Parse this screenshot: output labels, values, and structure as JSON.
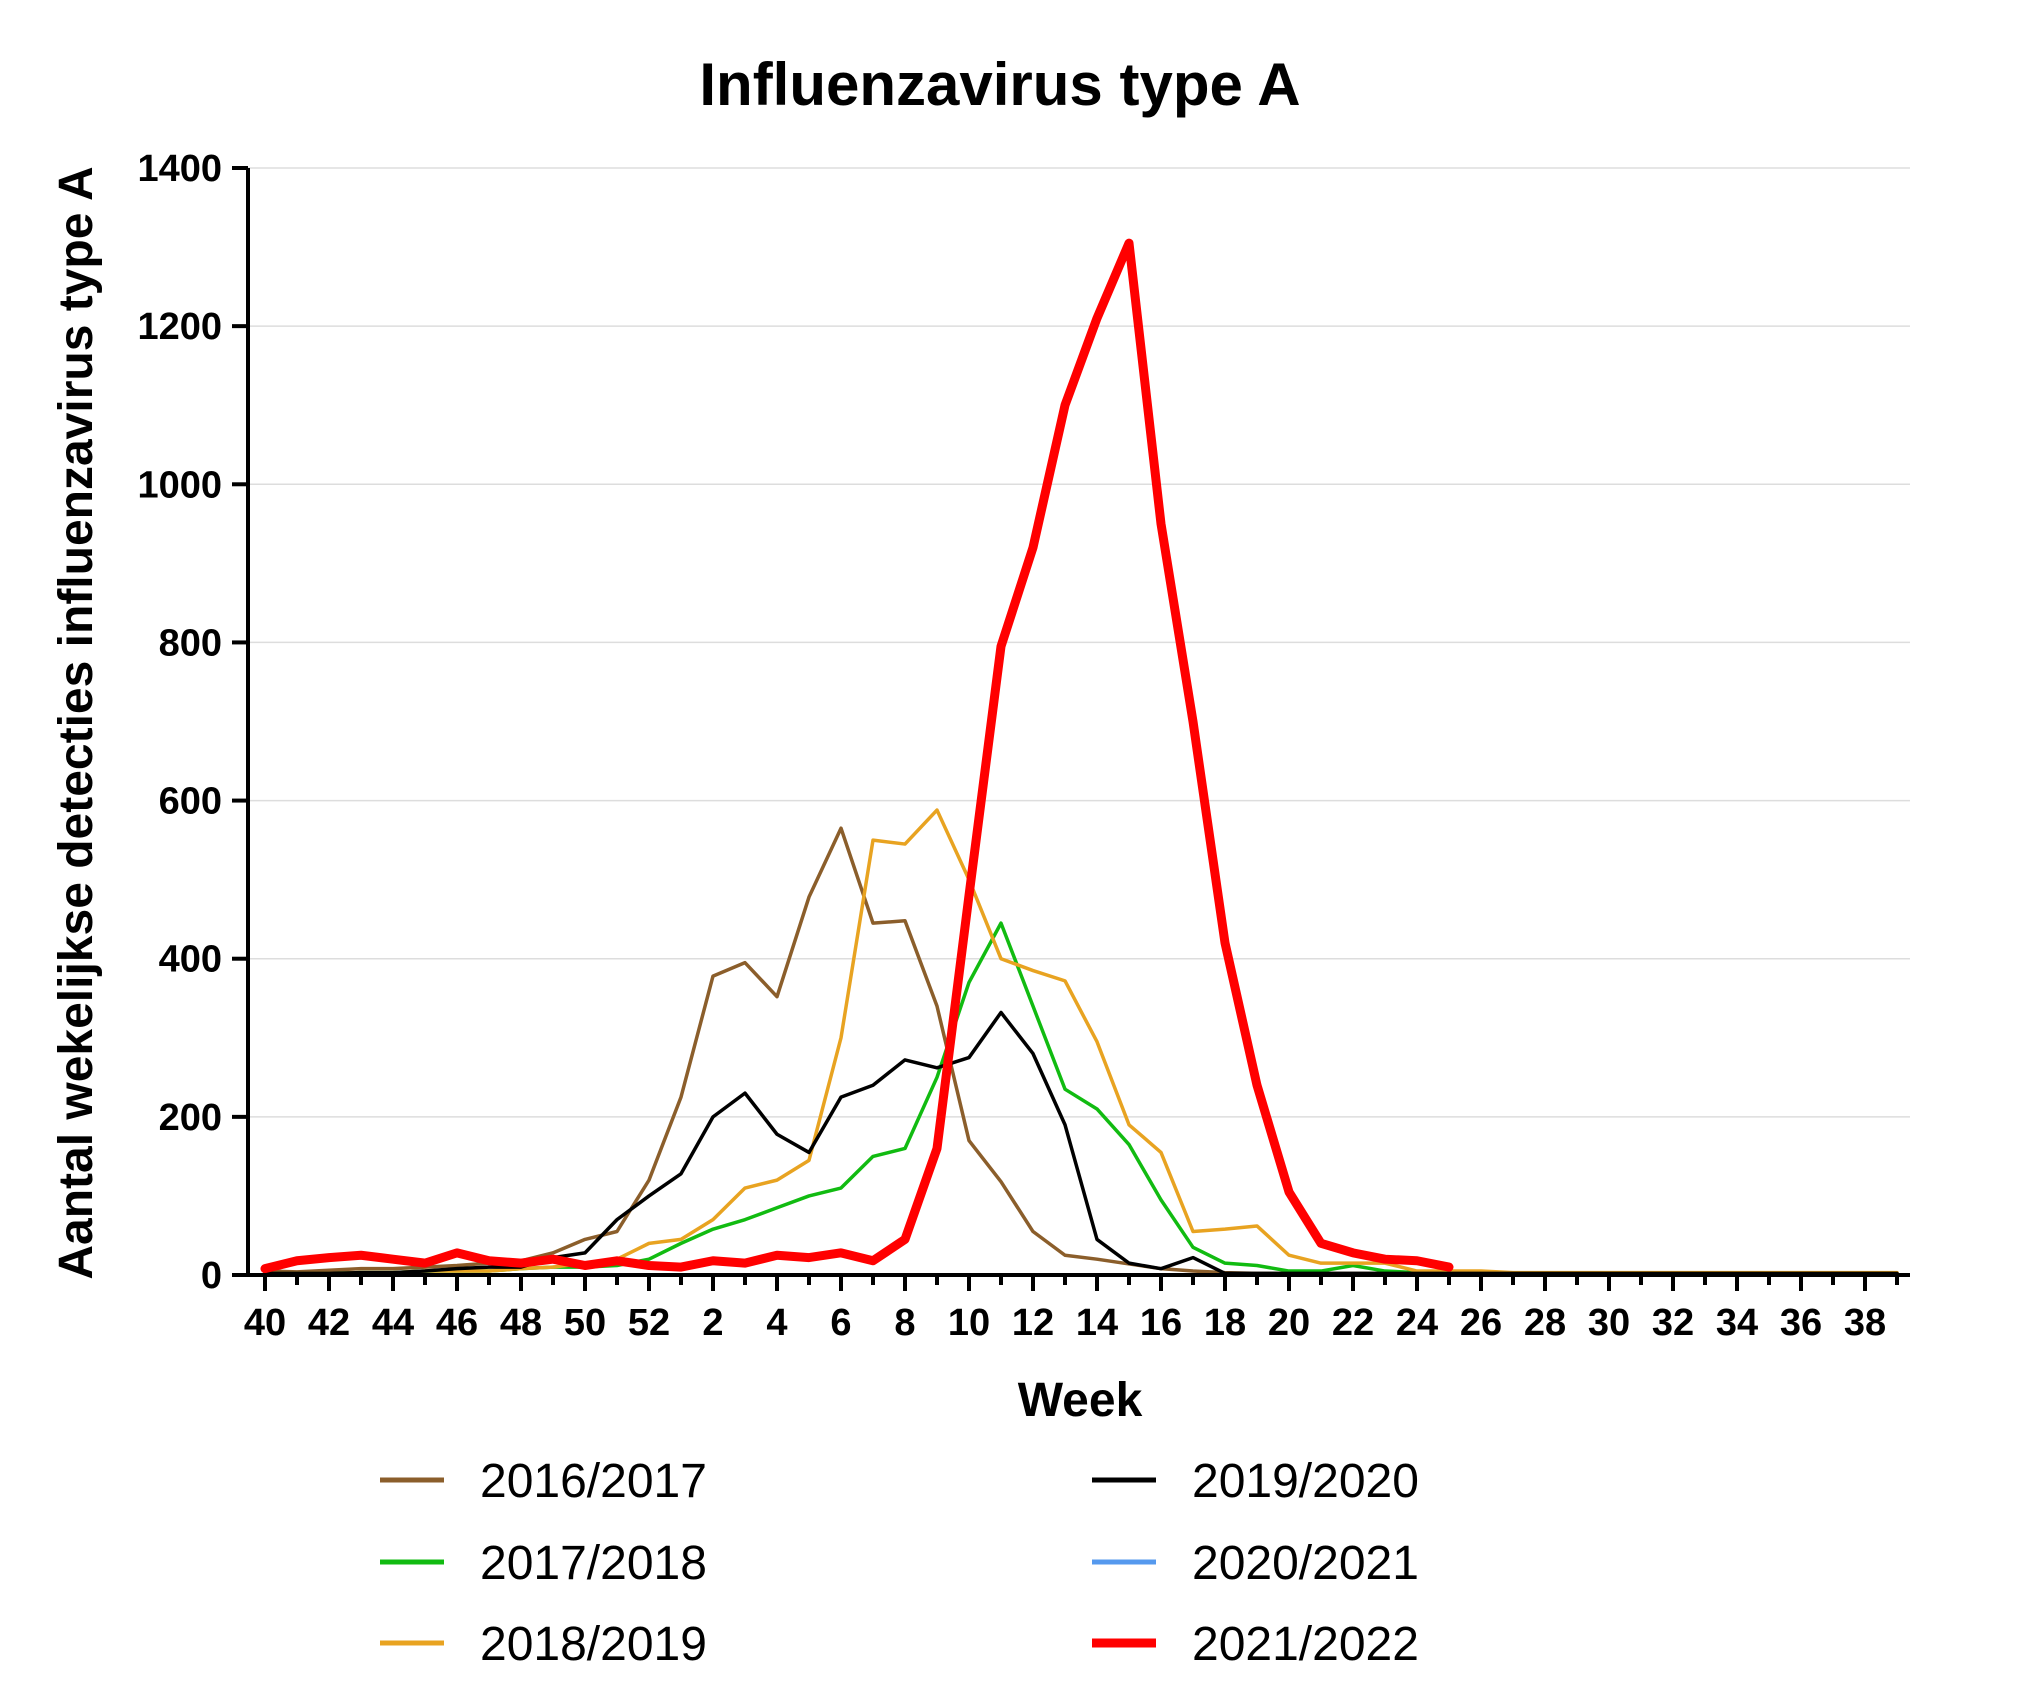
{
  "chart_data": {
    "type": "line",
    "title": "Influenzavirus type A",
    "xlabel": "Week",
    "ylabel": "Aantal wekelijkse detecties influenzavirus type A",
    "ylim": [
      0,
      1400
    ],
    "yticks": [
      0,
      200,
      400,
      600,
      800,
      1000,
      1200,
      1400
    ],
    "grid": true,
    "legend_position": "bottom",
    "x_tick_labels": [
      "40",
      "42",
      "44",
      "46",
      "48",
      "50",
      "52",
      "2",
      "4",
      "6",
      "8",
      "10",
      "12",
      "14",
      "16",
      "18",
      "20",
      "22",
      "24",
      "26",
      "28",
      "30",
      "32",
      "34",
      "36",
      "38"
    ],
    "weeks": [
      40,
      41,
      42,
      43,
      44,
      45,
      46,
      47,
      48,
      49,
      50,
      51,
      52,
      1,
      2,
      3,
      4,
      5,
      6,
      7,
      8,
      9,
      10,
      11,
      12,
      13,
      14,
      15,
      16,
      17,
      18,
      19,
      20,
      21,
      22,
      23,
      24,
      25,
      26,
      27,
      28,
      29,
      30,
      31,
      32,
      33,
      34,
      35,
      36,
      37,
      38,
      39
    ],
    "series": [
      {
        "name": "2016/2017",
        "color": "#8B5E2B",
        "values": [
          5,
          4,
          6,
          8,
          8,
          10,
          12,
          15,
          18,
          28,
          45,
          55,
          120,
          225,
          378,
          395,
          352,
          478,
          565,
          445,
          448,
          340,
          170,
          118,
          55,
          25,
          20,
          14,
          8,
          5,
          3,
          2,
          2,
          2,
          2,
          2,
          2,
          2,
          2,
          2,
          2,
          2,
          2,
          2,
          2,
          2,
          2,
          2,
          2,
          2,
          2,
          2
        ]
      },
      {
        "name": "2017/2018",
        "color": "#11BB11",
        "values": [
          2,
          2,
          2,
          3,
          3,
          5,
          5,
          5,
          8,
          10,
          10,
          12,
          20,
          40,
          58,
          70,
          85,
          100,
          110,
          150,
          160,
          250,
          370,
          445,
          340,
          235,
          210,
          165,
          95,
          35,
          15,
          12,
          5,
          5,
          12,
          5,
          3,
          3,
          2,
          2,
          2,
          2,
          2,
          2,
          2,
          2,
          2,
          2,
          2,
          2,
          2,
          2
        ]
      },
      {
        "name": "2018/2019",
        "color": "#E8A321",
        "values": [
          2,
          2,
          2,
          3,
          3,
          5,
          5,
          5,
          8,
          10,
          15,
          20,
          40,
          45,
          70,
          110,
          120,
          145,
          300,
          550,
          545,
          588,
          500,
          400,
          385,
          372,
          295,
          190,
          155,
          55,
          58,
          62,
          25,
          15,
          15,
          15,
          5,
          5,
          5,
          3,
          3,
          3,
          3,
          3,
          3,
          3,
          3,
          3,
          3,
          3,
          3,
          3
        ]
      },
      {
        "name": "2019/2020",
        "color": "#000000",
        "values": [
          2,
          2,
          2,
          3,
          3,
          5,
          8,
          10,
          10,
          22,
          28,
          70,
          100,
          128,
          200,
          230,
          178,
          155,
          225,
          240,
          272,
          262,
          275,
          332,
          280,
          190,
          45,
          15,
          8,
          22,
          2,
          2,
          2,
          2,
          2,
          2,
          2,
          2,
          2,
          2,
          2,
          2,
          2,
          2,
          2,
          2,
          2,
          2,
          2,
          2,
          2,
          2
        ]
      },
      {
        "name": "2020/2021",
        "color": "#5599EE",
        "values": [
          0,
          0,
          0,
          0,
          0,
          0,
          0,
          0,
          0,
          0,
          0,
          0,
          0,
          0,
          0,
          0,
          0,
          0,
          0,
          0,
          0,
          0,
          0,
          0,
          0,
          0,
          0,
          0,
          0,
          0,
          0,
          0,
          0,
          0,
          0,
          0,
          0,
          0,
          0,
          0,
          0,
          0,
          0,
          0,
          0,
          0,
          0,
          0,
          0,
          0,
          0,
          0
        ]
      },
      {
        "name": "2021/2022",
        "color": "#FF0000",
        "values": [
          8,
          18,
          22,
          25,
          20,
          15,
          28,
          18,
          15,
          20,
          12,
          18,
          12,
          10,
          18,
          15,
          25,
          22,
          28,
          18,
          45,
          160,
          480,
          795,
          920,
          1100,
          1210,
          1305,
          950,
          700,
          420,
          240,
          105,
          40,
          28,
          20,
          18,
          10
        ]
      }
    ]
  }
}
